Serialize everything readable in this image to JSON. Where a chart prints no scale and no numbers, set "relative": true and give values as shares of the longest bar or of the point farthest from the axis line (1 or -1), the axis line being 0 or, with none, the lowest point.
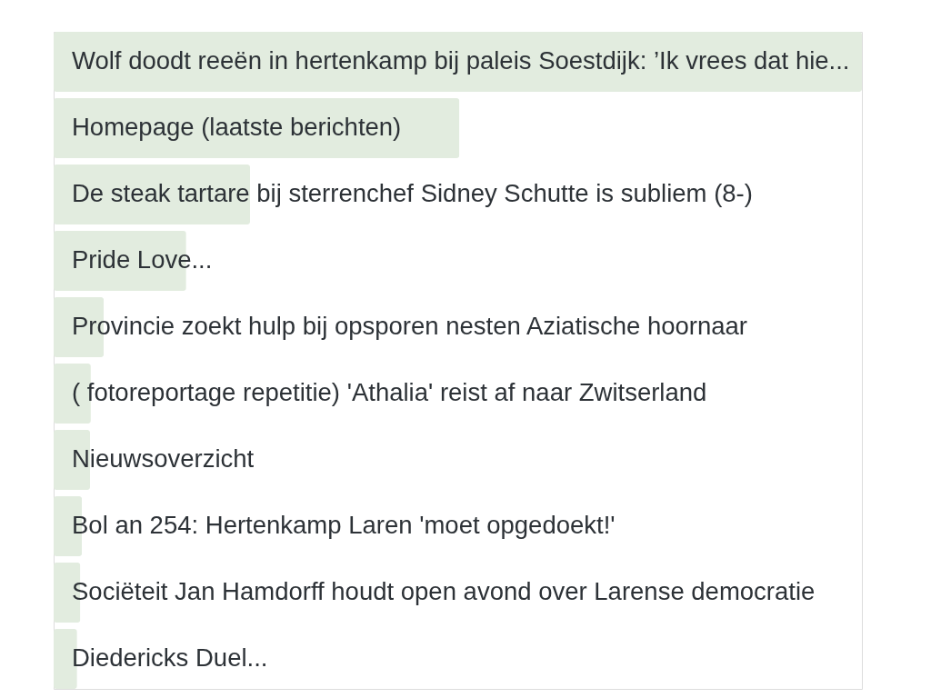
{
  "chart_data": {
    "type": "bar",
    "orientation": "horizontal",
    "relative": true,
    "tick_labels": "y",
    "color": "#e2ecdf",
    "categories": [
      "Wolf doodt reeën in hertenkamp bij paleis Soestdijk: ’Ik vrees dat hie...",
      "Homepage (laatste berichten)",
      "De steak tartare bij sterrenchef Sidney Schutte is subliem (8-)",
      "Pride Love...",
      "Provincie zoekt hulp bij opsporen nesten Aziatische hoornaar",
      "( fotoreportage repetitie) 'Athalia' reist af naar Zwitserland",
      "Nieuwsoverzicht",
      "Bol an 254: Hertenkamp Laren 'moet opgedoekt!'",
      "Sociëteit Jan Hamdorff houdt open avond over Larense democratie",
      "Diedericks Duel..."
    ],
    "values": [
      1,
      0.502,
      0.243,
      0.164,
      0.062,
      0.046,
      0.045,
      0.035,
      0.033,
      0.029
    ]
  }
}
